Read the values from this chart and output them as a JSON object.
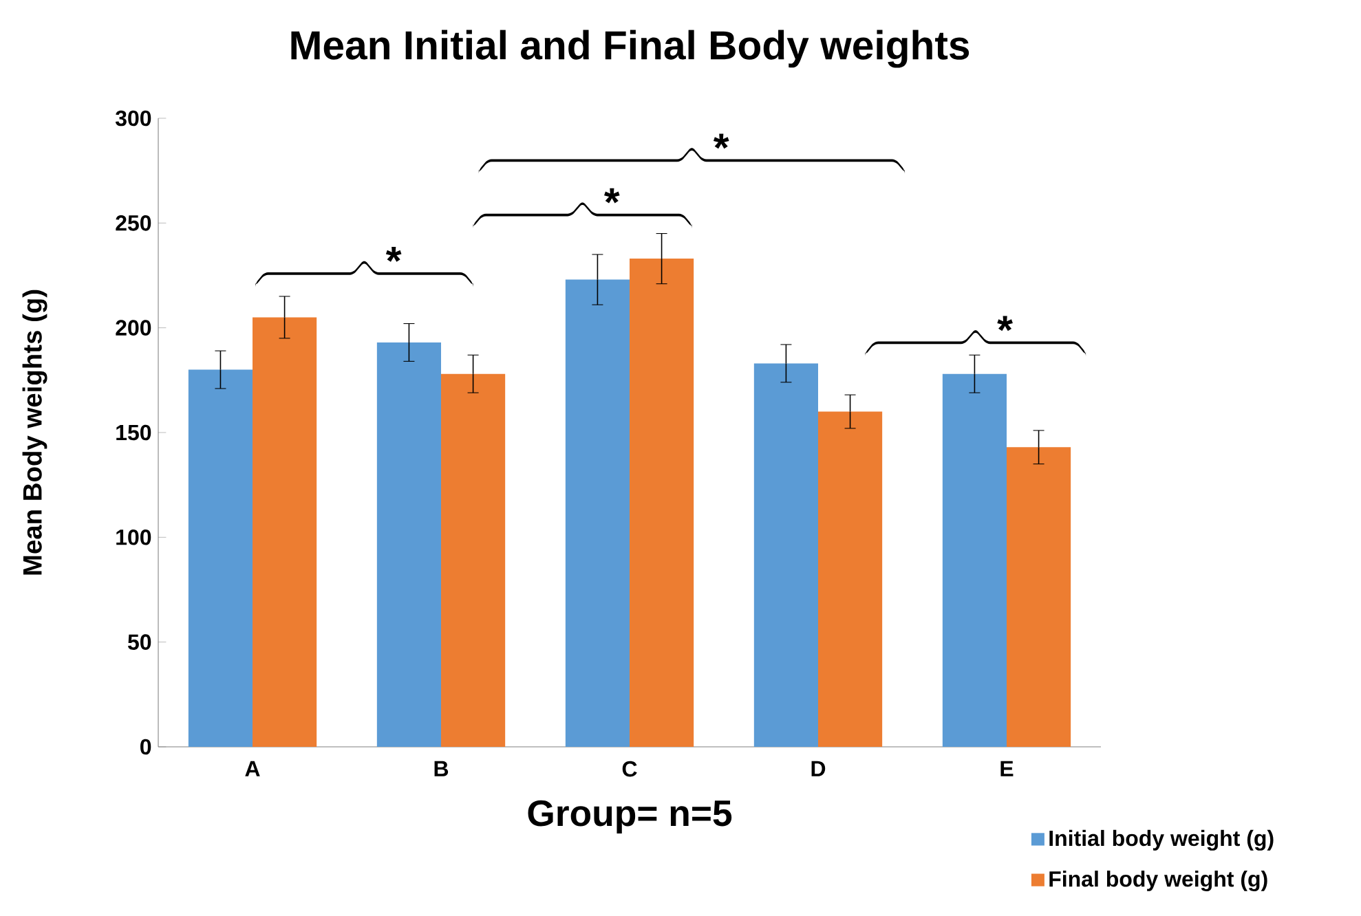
{
  "chart_data": {
    "type": "bar",
    "title": "Mean Initial and Final Body weights",
    "xlabel": "Group= n=5",
    "ylabel": "Mean Body weights (g)",
    "categories": [
      "A",
      "B",
      "C",
      "D",
      "E"
    ],
    "series": [
      {
        "name": "Initial body weight (g)",
        "color": "#5b9bd5",
        "values": [
          180,
          193,
          223,
          183,
          178
        ],
        "errors": [
          9,
          9,
          12,
          9,
          9
        ]
      },
      {
        "name": "Final body weight (g)",
        "color": "#ed7d31",
        "values": [
          205,
          178,
          233,
          160,
          143
        ],
        "errors": [
          10,
          9,
          12,
          8,
          8
        ]
      }
    ],
    "ylim": [
      0,
      300
    ],
    "yticks": [
      0,
      50,
      100,
      150,
      200,
      250,
      300
    ],
    "legend": "bottom right",
    "grid": false,
    "annotations": [
      "*",
      "*",
      "*",
      "*"
    ]
  }
}
